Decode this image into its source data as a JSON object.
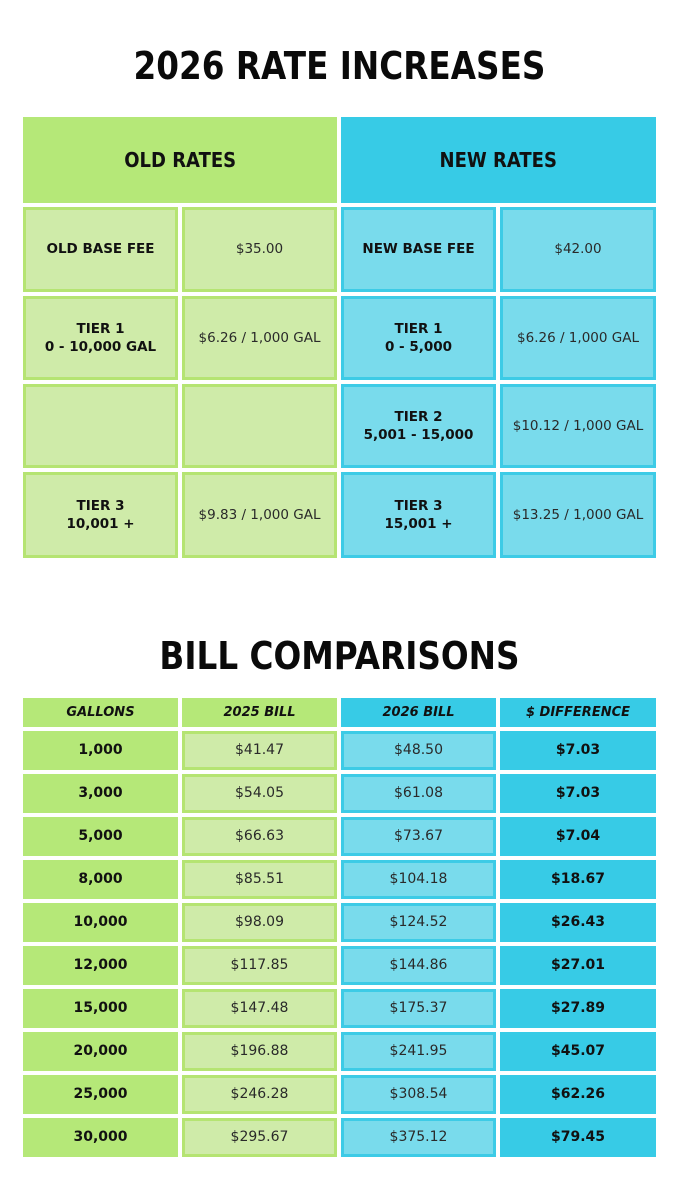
{
  "rates": {
    "title": "2026 RATE INCREASES",
    "old_header": "OLD RATES",
    "new_header": "NEW RATES",
    "colors": {
      "green": "#b5e878",
      "green_light": "#cfeba9",
      "blue": "#37cbe6",
      "blue_light": "#79dbec"
    },
    "rows": [
      {
        "old_label": [
          "OLD BASE FEE"
        ],
        "old_value": "$35.00",
        "new_label": [
          "NEW BASE FEE"
        ],
        "new_value": "$42.00"
      },
      {
        "old_label": [
          "TIER 1",
          "0 - 10,000 GAL"
        ],
        "old_value": "$6.26 / 1,000 GAL",
        "new_label": [
          "TIER 1",
          "0 - 5,000"
        ],
        "new_value": "$6.26 / 1,000 GAL"
      },
      {
        "old_label": [],
        "old_value": "",
        "new_label": [
          "TIER 2",
          "5,001 - 15,000"
        ],
        "new_value": "$10.12 / 1,000 GAL"
      },
      {
        "old_label": [
          "TIER 3",
          "10,001 +"
        ],
        "old_value": "$9.83 / 1,000 GAL",
        "new_label": [
          "TIER 3",
          "15,001 +"
        ],
        "new_value": "$13.25 / 1,000 GAL"
      }
    ]
  },
  "bills": {
    "title": "BILL COMPARISONS",
    "headers": [
      "GALLONS",
      "2025 BILL",
      "2026 BILL",
      "$ DIFFERENCE"
    ],
    "rows": [
      [
        "1,000",
        "$41.47",
        "$48.50",
        "$7.03"
      ],
      [
        "3,000",
        "$54.05",
        "$61.08",
        "$7.03"
      ],
      [
        "5,000",
        "$66.63",
        "$73.67",
        "$7.04"
      ],
      [
        "8,000",
        "$85.51",
        "$104.18",
        "$18.67"
      ],
      [
        "10,000",
        "$98.09",
        "$124.52",
        "$26.43"
      ],
      [
        "12,000",
        "$117.85",
        "$144.86",
        "$27.01"
      ],
      [
        "15,000",
        "$147.48",
        "$175.37",
        "$27.89"
      ],
      [
        "20,000",
        "$196.88",
        "$241.95",
        "$45.07"
      ],
      [
        "25,000",
        "$246.28",
        "$308.54",
        "$62.26"
      ],
      [
        "30,000",
        "$295.67",
        "$375.12",
        "$79.45"
      ]
    ]
  }
}
